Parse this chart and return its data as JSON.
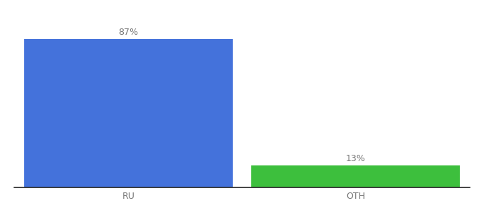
{
  "categories": [
    "RU",
    "OTH"
  ],
  "values": [
    87,
    13
  ],
  "bar_colors": [
    "#4472db",
    "#3dbf3d"
  ],
  "label_texts": [
    "87%",
    "13%"
  ],
  "ylim": [
    0,
    100
  ],
  "background_color": "#ffffff",
  "label_fontsize": 9,
  "tick_fontsize": 9,
  "bar_width": 0.55,
  "x_positions": [
    0.3,
    0.9
  ],
  "xlim": [
    0.0,
    1.2
  ]
}
